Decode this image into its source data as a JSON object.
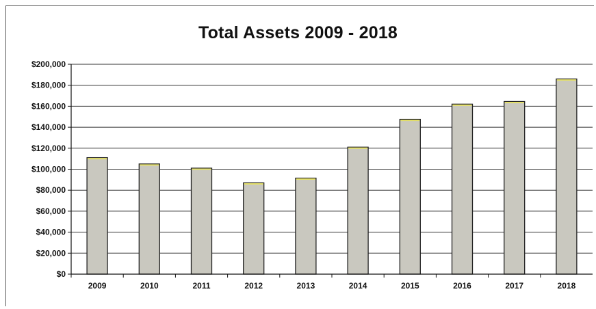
{
  "chart_data": {
    "type": "bar",
    "title": "Total Assets 2009 - 2018",
    "xlabel": "",
    "ylabel": "",
    "categories": [
      "2009",
      "2010",
      "2011",
      "2012",
      "2013",
      "2014",
      "2015",
      "2016",
      "2017",
      "2018"
    ],
    "values": [
      111000,
      105000,
      101000,
      87000,
      91500,
      121000,
      147500,
      162000,
      164500,
      186000
    ],
    "ylim": [
      0,
      200000
    ],
    "yticks": [
      0,
      20000,
      40000,
      60000,
      80000,
      100000,
      120000,
      140000,
      160000,
      180000,
      200000
    ],
    "ytick_labels": [
      "$0",
      "$20,000",
      "$40,000",
      "$60,000",
      "$80,000",
      "$100,000",
      "$120,000",
      "$140,000",
      "$160,000",
      "$180,000",
      "$200,000"
    ],
    "grid": true,
    "legend": "none",
    "colors": {
      "bar_fill": "#c9c8bf",
      "bar_edge": "#222222",
      "bar_top": "#e4e06a",
      "grid": "#333333"
    }
  }
}
